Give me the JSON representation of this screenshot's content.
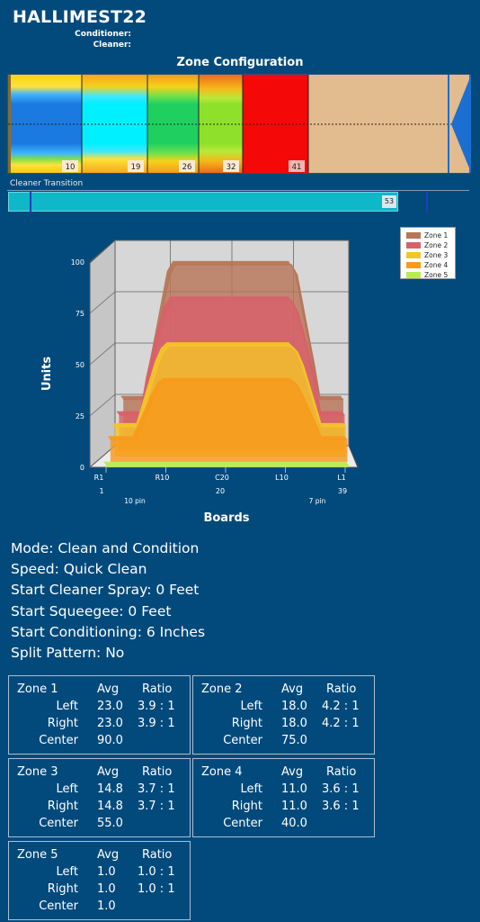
{
  "header": {
    "title": "HALLIMEST22",
    "conditioner_label": "Conditioner:",
    "cleaner_label": "Cleaner:"
  },
  "zone_config": {
    "title": "Zone Configuration",
    "markers": [
      "10",
      "19",
      "26",
      "32",
      "41"
    ]
  },
  "cleaner_transition": {
    "label": "Cleaner Transition",
    "value": "53"
  },
  "chart_data": {
    "type": "area",
    "title": "",
    "xlabel": "Boards",
    "ylabel": "Units",
    "ylim": [
      0,
      100
    ],
    "yticks": [
      "0",
      "25",
      "50",
      "75",
      "100"
    ],
    "board_labels": [
      "R1",
      "R10",
      "C20",
      "L10",
      "L1"
    ],
    "board_numbers": [
      "1",
      "20",
      "39"
    ],
    "pin_labels": [
      "10 pin",
      "7 pin"
    ],
    "legend_position": "top-right",
    "x": [
      1,
      3,
      4,
      5,
      6,
      7,
      8,
      9,
      10,
      11,
      12,
      13,
      14,
      15,
      16,
      17,
      18,
      19,
      20,
      21,
      22,
      23,
      24,
      25,
      26,
      27,
      28,
      29,
      30,
      31,
      32,
      33,
      34,
      35,
      36,
      37,
      39
    ],
    "series": [
      {
        "name": "Zone 1",
        "color": "#b77658",
        "values": [
          23,
          23,
          23,
          23,
          40,
          55,
          70,
          85,
          90,
          90,
          90,
          90,
          90,
          90,
          90,
          90,
          90,
          90,
          90,
          90,
          90,
          90,
          90,
          90,
          90,
          90,
          90,
          90,
          90,
          85,
          70,
          55,
          40,
          23,
          23,
          23,
          23
        ]
      },
      {
        "name": "Zone 2",
        "color": "#d8606a",
        "values": [
          18,
          18,
          18,
          18,
          35,
          48,
          60,
          70,
          75,
          75,
          75,
          75,
          75,
          75,
          75,
          75,
          75,
          75,
          75,
          75,
          75,
          75,
          75,
          75,
          75,
          75,
          75,
          75,
          75,
          70,
          60,
          48,
          35,
          18,
          18,
          18,
          18
        ]
      },
      {
        "name": "Zone 3",
        "color": "#f4c528",
        "values": [
          14.8,
          14.8,
          14.8,
          14.8,
          25,
          35,
          45,
          52,
          55,
          55,
          55,
          55,
          55,
          55,
          55,
          55,
          55,
          55,
          55,
          55,
          55,
          55,
          55,
          55,
          55,
          55,
          55,
          55,
          55,
          52,
          45,
          35,
          25,
          14.8,
          14.8,
          14.8,
          14.8
        ]
      },
      {
        "name": "Zone 4",
        "color": "#f89a1c",
        "values": [
          11,
          11,
          11,
          11,
          18,
          25,
          32,
          38,
          40,
          40,
          40,
          40,
          40,
          40,
          40,
          40,
          40,
          40,
          40,
          40,
          40,
          40,
          40,
          40,
          40,
          40,
          40,
          40,
          40,
          38,
          32,
          25,
          18,
          11,
          11,
          11,
          11
        ]
      },
      {
        "name": "Zone 5",
        "color": "#b9ec52",
        "values": [
          1,
          1,
          1,
          1,
          1,
          1,
          1,
          1,
          1,
          1,
          1,
          1,
          1,
          1,
          1,
          1,
          1,
          1,
          1,
          1,
          1,
          1,
          1,
          1,
          1,
          1,
          1,
          1,
          1,
          1,
          1,
          1,
          1,
          1,
          1,
          1,
          1
        ]
      }
    ]
  },
  "settings": [
    "Mode: Clean and Condition",
    "Speed: Quick Clean",
    "Start Cleaner Spray: 0 Feet",
    "Start Squeegee: 0 Feet",
    "Start Conditioning: 6 Inches",
    "Split Pattern: No"
  ],
  "zone_headers": {
    "avg": "Avg",
    "ratio": "Ratio",
    "left": "Left",
    "right": "Right",
    "center": "Center"
  },
  "zones": [
    {
      "name": "Zone 1",
      "left_avg": "23.0",
      "left_ratio": "3.9 : 1",
      "right_avg": "23.0",
      "right_ratio": "3.9 : 1",
      "center_avg": "90.0"
    },
    {
      "name": "Zone 2",
      "left_avg": "18.0",
      "left_ratio": "4.2 : 1",
      "right_avg": "18.0",
      "right_ratio": "4.2 : 1",
      "center_avg": "75.0"
    },
    {
      "name": "Zone 3",
      "left_avg": "14.8",
      "left_ratio": "3.7 : 1",
      "right_avg": "14.8",
      "right_ratio": "3.7 : 1",
      "center_avg": "55.0"
    },
    {
      "name": "Zone 4",
      "left_avg": "11.0",
      "left_ratio": "3.6 : 1",
      "right_avg": "11.0",
      "right_ratio": "3.6 : 1",
      "center_avg": "40.0"
    },
    {
      "name": "Zone 5",
      "left_avg": "1.0",
      "left_ratio": "1.0 : 1",
      "right_avg": "1.0",
      "right_ratio": "1.0 : 1",
      "center_avg": "1.0"
    }
  ]
}
